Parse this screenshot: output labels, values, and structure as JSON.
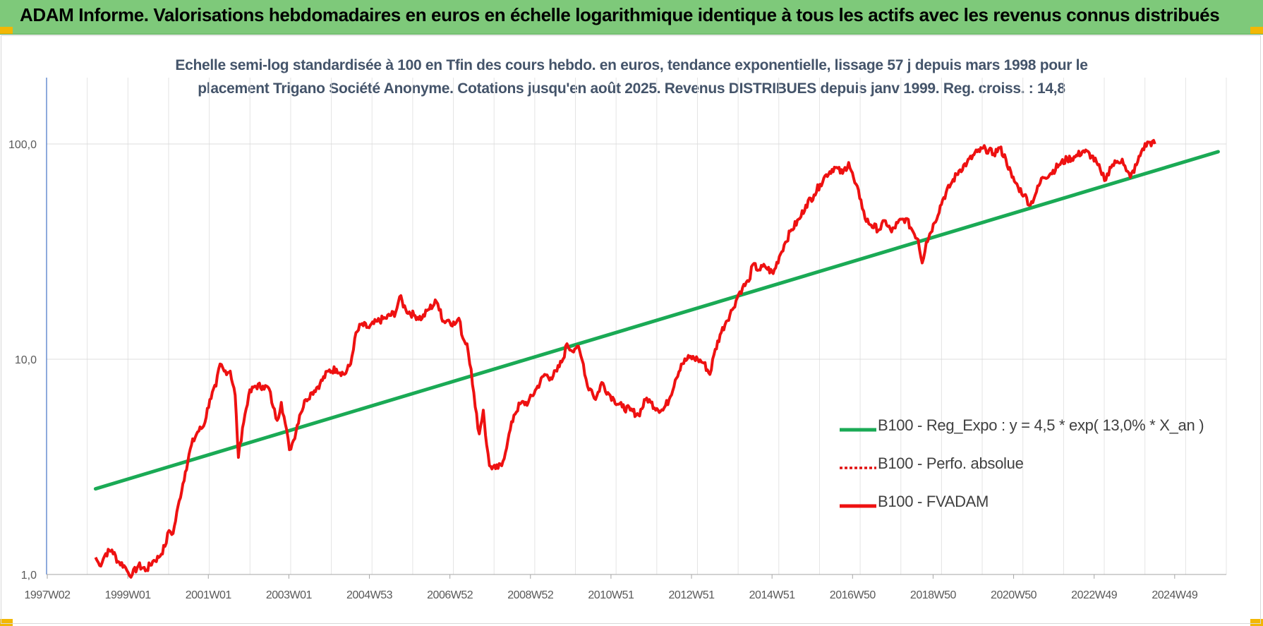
{
  "header": {
    "title": "ADAM Informe. Valorisations hebdomadaires en euros en échelle logarithmique identique à tous les actifs avec les revenus connus distribués"
  },
  "colors": {
    "band": "#7ec97a",
    "corner": "#f2b705",
    "regression": "#1aaa55",
    "fvadam": "#ee1111",
    "perfo": "#e01010"
  },
  "chart_data": {
    "type": "line",
    "title_lines": [
      "Echelle semi-log standardisée à 100 en Tfin des cours hebdo. en euros, tendance exponentielle, lissage 57 j depuis mars 1998 pour le",
      "placement Trigano Société Anonyme. Cotations jusqu'en août 2025. Revenus DISTRIBUES depuis janv 1999. Reg. croiss. : 14,8"
    ],
    "y_scale": "log",
    "ylim": [
      1,
      200
    ],
    "y_ticks": [
      "1,0",
      "10,0",
      "100,0"
    ],
    "x_range": [
      1997.0,
      2025.9
    ],
    "x_ticks": [
      "1997W02",
      "1999W01",
      "2001W01",
      "2003W01",
      "2004W53",
      "2006W52",
      "2008W52",
      "2010W51",
      "2012W51",
      "2014W51",
      "2016W50",
      "2018W50",
      "2020W50",
      "2022W49",
      "2024W49"
    ],
    "grid": true,
    "legend_position": "right-center",
    "series": [
      {
        "name": "B100 - Reg_Expo : y = 4,5 * exp( 13,0% *  X_an )",
        "style": "solid-green",
        "points": [
          [
            1998.2,
            2.5
          ],
          [
            2025.7,
            92
          ]
        ]
      },
      {
        "name": "B100 - Perfo. absolue",
        "style": "dotted-red",
        "points": []
      },
      {
        "name": "B100 - FVADAM",
        "style": "solid-red",
        "points": [
          [
            1998.2,
            1.2
          ],
          [
            1998.3,
            1.1
          ],
          [
            1998.45,
            1.25
          ],
          [
            1998.6,
            1.3
          ],
          [
            1998.75,
            1.15
          ],
          [
            1998.9,
            1.1
          ],
          [
            1999.0,
            1.02
          ],
          [
            1999.1,
            1.0
          ],
          [
            1999.25,
            1.1
          ],
          [
            1999.45,
            1.05
          ],
          [
            1999.6,
            1.15
          ],
          [
            1999.75,
            1.2
          ],
          [
            1999.9,
            1.35
          ],
          [
            2000.0,
            1.6
          ],
          [
            2000.1,
            1.55
          ],
          [
            2000.25,
            2.2
          ],
          [
            2000.4,
            3.0
          ],
          [
            2000.55,
            4.0
          ],
          [
            2000.7,
            4.6
          ],
          [
            2000.85,
            4.9
          ],
          [
            2001.0,
            6.5
          ],
          [
            2001.15,
            7.5
          ],
          [
            2001.25,
            9.5
          ],
          [
            2001.35,
            8.8
          ],
          [
            2001.5,
            8.8
          ],
          [
            2001.62,
            6.8
          ],
          [
            2001.7,
            3.5
          ],
          [
            2001.8,
            4.8
          ],
          [
            2001.95,
            6.8
          ],
          [
            2002.1,
            7.5
          ],
          [
            2002.3,
            7.5
          ],
          [
            2002.45,
            7.3
          ],
          [
            2002.55,
            6.0
          ],
          [
            2002.65,
            5.2
          ],
          [
            2002.75,
            6.3
          ],
          [
            2002.85,
            5.0
          ],
          [
            2002.95,
            3.8
          ],
          [
            2003.05,
            4.2
          ],
          [
            2003.2,
            5.5
          ],
          [
            2003.35,
            6.5
          ],
          [
            2003.5,
            7.0
          ],
          [
            2003.7,
            7.7
          ],
          [
            2003.9,
            8.8
          ],
          [
            2004.1,
            9.0
          ],
          [
            2004.3,
            8.5
          ],
          [
            2004.45,
            9.5
          ],
          [
            2004.55,
            12.5
          ],
          [
            2004.7,
            14.5
          ],
          [
            2004.9,
            14.0
          ],
          [
            2005.1,
            15.0
          ],
          [
            2005.3,
            15.5
          ],
          [
            2005.55,
            16.5
          ],
          [
            2005.65,
            19.5
          ],
          [
            2005.8,
            17.0
          ],
          [
            2006.0,
            16.0
          ],
          [
            2006.2,
            15.5
          ],
          [
            2006.35,
            17.0
          ],
          [
            2006.55,
            18.5
          ],
          [
            2006.65,
            17.0
          ],
          [
            2006.7,
            15.0
          ],
          [
            2006.85,
            15.2
          ],
          [
            2007.0,
            14.5
          ],
          [
            2007.1,
            15.5
          ],
          [
            2007.2,
            12.5
          ],
          [
            2007.3,
            11.8
          ],
          [
            2007.4,
            9.0
          ],
          [
            2007.5,
            6.0
          ],
          [
            2007.6,
            4.5
          ],
          [
            2007.7,
            5.8
          ],
          [
            2007.78,
            4.0
          ],
          [
            2007.85,
            3.2
          ],
          [
            2008.0,
            3.1
          ],
          [
            2008.15,
            3.2
          ],
          [
            2008.3,
            4.2
          ],
          [
            2008.45,
            5.5
          ],
          [
            2008.6,
            6.2
          ],
          [
            2008.8,
            6.3
          ],
          [
            2009.0,
            7.3
          ],
          [
            2009.2,
            8.5
          ],
          [
            2009.35,
            8.2
          ],
          [
            2009.5,
            8.8
          ],
          [
            2009.65,
            10.0
          ],
          [
            2009.75,
            11.8
          ],
          [
            2009.85,
            11.0
          ],
          [
            2010.0,
            11.5
          ],
          [
            2010.15,
            9.5
          ],
          [
            2010.25,
            7.5
          ],
          [
            2010.35,
            7.2
          ],
          [
            2010.45,
            6.5
          ],
          [
            2010.6,
            7.8
          ],
          [
            2010.75,
            7.0
          ],
          [
            2010.9,
            6.5
          ],
          [
            2011.1,
            6.0
          ],
          [
            2011.3,
            5.8
          ],
          [
            2011.5,
            5.5
          ],
          [
            2011.7,
            6.6
          ],
          [
            2011.8,
            6.3
          ],
          [
            2011.95,
            5.9
          ],
          [
            2012.1,
            5.8
          ],
          [
            2012.25,
            6.5
          ],
          [
            2012.4,
            8.0
          ],
          [
            2012.55,
            9.5
          ],
          [
            2012.75,
            10.2
          ],
          [
            2012.95,
            10.0
          ],
          [
            2013.1,
            9.6
          ],
          [
            2013.25,
            8.5
          ],
          [
            2013.35,
            10.5
          ],
          [
            2013.5,
            13.0
          ],
          [
            2013.65,
            15.0
          ],
          [
            2013.8,
            17.0
          ],
          [
            2013.95,
            20.0
          ],
          [
            2014.05,
            21.5
          ],
          [
            2014.2,
            23.0
          ],
          [
            2014.3,
            27.5
          ],
          [
            2014.45,
            26.0
          ],
          [
            2014.6,
            27.0
          ],
          [
            2014.8,
            25.0
          ],
          [
            2014.95,
            30.0
          ],
          [
            2015.1,
            35.0
          ],
          [
            2015.25,
            40.0
          ],
          [
            2015.45,
            45.0
          ],
          [
            2015.6,
            52.0
          ],
          [
            2015.8,
            58.0
          ],
          [
            2015.95,
            65.0
          ],
          [
            2016.1,
            72.0
          ],
          [
            2016.3,
            78.0
          ],
          [
            2016.5,
            73.0
          ],
          [
            2016.65,
            82.0
          ],
          [
            2016.8,
            66.0
          ],
          [
            2016.95,
            55.0
          ],
          [
            2017.05,
            45.0
          ],
          [
            2017.2,
            42.0
          ],
          [
            2017.4,
            40.0
          ],
          [
            2017.55,
            44.0
          ],
          [
            2017.7,
            39.0
          ],
          [
            2017.85,
            43.0
          ],
          [
            2018.05,
            45.0
          ],
          [
            2018.2,
            40.0
          ],
          [
            2018.35,
            36.0
          ],
          [
            2018.45,
            28.0
          ],
          [
            2018.55,
            35.0
          ],
          [
            2018.75,
            43.0
          ],
          [
            2018.95,
            55.0
          ],
          [
            2019.15,
            65.0
          ],
          [
            2019.35,
            75.0
          ],
          [
            2019.55,
            82.0
          ],
          [
            2019.8,
            92.0
          ],
          [
            2020.0,
            95.0
          ],
          [
            2020.2,
            90.0
          ],
          [
            2020.35,
            96.0
          ],
          [
            2020.5,
            85.0
          ],
          [
            2020.65,
            70.0
          ],
          [
            2020.8,
            63.0
          ],
          [
            2020.95,
            58.0
          ],
          [
            2021.1,
            52.0
          ],
          [
            2021.25,
            60.0
          ],
          [
            2021.4,
            70.0
          ],
          [
            2021.6,
            73.0
          ],
          [
            2021.8,
            80.0
          ],
          [
            2022.0,
            85.0
          ],
          [
            2022.2,
            87.0
          ],
          [
            2022.4,
            93.0
          ],
          [
            2022.6,
            88.0
          ],
          [
            2022.75,
            80.0
          ],
          [
            2022.85,
            72.0
          ],
          [
            2022.95,
            68.0
          ],
          [
            2023.05,
            78.0
          ],
          [
            2023.2,
            82.0
          ],
          [
            2023.35,
            85.0
          ],
          [
            2023.45,
            75.0
          ],
          [
            2023.55,
            70.0
          ],
          [
            2023.7,
            80.0
          ],
          [
            2023.85,
            95.0
          ],
          [
            2024.0,
            102.0
          ],
          [
            2024.15,
            100.0
          ]
        ]
      }
    ]
  }
}
